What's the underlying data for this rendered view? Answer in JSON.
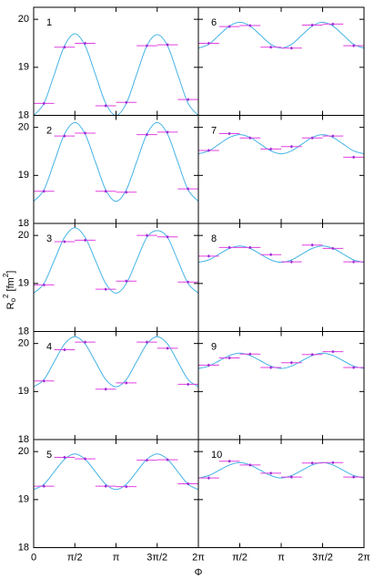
{
  "axes": {
    "ylabel_parts": [
      "R",
      "o",
      "2",
      " [fm",
      "2",
      "]"
    ],
    "xlabel": "Φ"
  },
  "chart_data": [
    {
      "type": "scatter",
      "title": "1",
      "color": "#9a2fd6",
      "errcolor": "#e040e0",
      "curve_color": "#45b3e6",
      "xlim": [
        0,
        6.283
      ],
      "ylim": [
        18,
        20.25
      ],
      "yticks": [
        18,
        19,
        20
      ],
      "xticks": [
        0,
        {
          "value": 1.571,
          "label": "π/2"
        },
        {
          "value": 3.142,
          "label": "π"
        },
        {
          "value": 4.712,
          "label": "3π/2"
        },
        {
          "value": 6.283,
          "label": "2π"
        }
      ],
      "x": [
        0.393,
        1.178,
        1.963,
        2.749,
        3.534,
        4.32,
        5.105,
        5.89
      ],
      "xerr": 0.393,
      "yerr": 0.03,
      "values": [
        18.25,
        19.42,
        19.5,
        18.2,
        18.27,
        19.45,
        19.47,
        18.33
      ],
      "curve": {
        "x": [
          0,
          0.393,
          0.785,
          1.178,
          1.571,
          1.963,
          2.356,
          2.749,
          3.142,
          3.534,
          3.927,
          4.32,
          4.712,
          5.105,
          5.498,
          5.89,
          6.283
        ],
        "values": [
          18.0,
          18.25,
          18.85,
          19.45,
          19.7,
          19.45,
          18.85,
          18.25,
          18.0,
          18.25,
          18.85,
          19.45,
          19.68,
          19.45,
          18.85,
          18.25,
          18.0
        ]
      }
    },
    {
      "type": "scatter",
      "title": "2",
      "color": "#9a2fd6",
      "errcolor": "#e040e0",
      "curve_color": "#45b3e6",
      "xlim": [
        0,
        6.283
      ],
      "ylim": [
        18,
        20.25
      ],
      "yticks": [
        18,
        19,
        20
      ],
      "xticks": [
        0,
        {
          "value": 1.571,
          "label": "π/2"
        },
        {
          "value": 3.142,
          "label": "π"
        },
        {
          "value": 4.712,
          "label": "3π/2"
        },
        {
          "value": 6.283,
          "label": "2π"
        }
      ],
      "x": [
        0.393,
        1.178,
        1.963,
        2.749,
        3.534,
        4.32,
        5.105,
        5.89
      ],
      "xerr": 0.393,
      "yerr": 0.03,
      "values": [
        18.67,
        19.82,
        19.88,
        18.67,
        18.65,
        19.85,
        19.9,
        18.72
      ],
      "curve": {
        "x": [
          0,
          0.393,
          0.785,
          1.178,
          1.571,
          1.963,
          2.356,
          2.749,
          3.142,
          3.534,
          3.927,
          4.32,
          4.712,
          5.105,
          5.498,
          5.89,
          6.283
        ],
        "values": [
          18.46,
          18.7,
          19.28,
          19.86,
          20.1,
          19.86,
          19.28,
          18.7,
          18.46,
          18.7,
          19.28,
          19.86,
          20.1,
          19.86,
          19.28,
          18.7,
          18.46
        ]
      }
    },
    {
      "type": "scatter",
      "title": "3",
      "color": "#9a2fd6",
      "errcolor": "#e040e0",
      "curve_color": "#45b3e6",
      "xlim": [
        0,
        6.283
      ],
      "ylim": [
        18,
        20.25
      ],
      "yticks": [
        18,
        19,
        20
      ],
      "xticks": [
        0,
        {
          "value": 1.571,
          "label": "π/2"
        },
        {
          "value": 3.142,
          "label": "π"
        },
        {
          "value": 4.712,
          "label": "3π/2"
        },
        {
          "value": 6.283,
          "label": "2π"
        }
      ],
      "x": [
        0.393,
        1.178,
        1.963,
        2.749,
        3.534,
        4.32,
        5.105,
        5.89
      ],
      "xerr": 0.393,
      "yerr": 0.03,
      "values": [
        18.97,
        19.87,
        19.9,
        18.88,
        19.05,
        20.0,
        19.97,
        19.03
      ],
      "curve": {
        "x": [
          0,
          0.393,
          0.785,
          1.178,
          1.571,
          1.963,
          2.356,
          2.749,
          3.142,
          3.534,
          3.927,
          4.32,
          4.712,
          5.105,
          5.498,
          5.89,
          6.283
        ],
        "values": [
          18.8,
          19.0,
          19.48,
          19.96,
          20.16,
          19.96,
          19.48,
          19.0,
          18.8,
          19.0,
          19.48,
          19.96,
          20.1,
          19.96,
          19.48,
          19.0,
          18.8
        ]
      }
    },
    {
      "type": "scatter",
      "title": "4",
      "color": "#9a2fd6",
      "errcolor": "#e040e0",
      "curve_color": "#45b3e6",
      "xlim": [
        0,
        6.283
      ],
      "ylim": [
        18,
        20.25
      ],
      "yticks": [
        18,
        19,
        20
      ],
      "xticks": [
        0,
        {
          "value": 1.571,
          "label": "π/2"
        },
        {
          "value": 3.142,
          "label": "π"
        },
        {
          "value": 4.712,
          "label": "3π/2"
        },
        {
          "value": 6.283,
          "label": "2π"
        }
      ],
      "x": [
        0.393,
        1.178,
        1.963,
        2.749,
        3.534,
        4.32,
        5.105,
        5.89
      ],
      "xerr": 0.393,
      "yerr": 0.03,
      "values": [
        19.22,
        19.87,
        20.03,
        19.05,
        19.18,
        20.03,
        19.9,
        19.15
      ],
      "curve": {
        "x": [
          0,
          0.393,
          0.785,
          1.178,
          1.571,
          1.963,
          2.356,
          2.749,
          3.142,
          3.534,
          3.927,
          4.32,
          4.712,
          5.105,
          5.498,
          5.89,
          6.283
        ],
        "values": [
          19.1,
          19.25,
          19.62,
          19.99,
          20.14,
          19.99,
          19.62,
          19.25,
          19.1,
          19.25,
          19.62,
          19.99,
          20.14,
          19.99,
          19.62,
          19.25,
          19.1
        ]
      }
    },
    {
      "type": "scatter",
      "title": "5",
      "color": "#9a2fd6",
      "errcolor": "#e040e0",
      "curve_color": "#45b3e6",
      "xlim": [
        0,
        6.283
      ],
      "ylim": [
        18,
        20.25
      ],
      "yticks": [
        18,
        19,
        20
      ],
      "xticks": [
        0,
        {
          "value": 1.571,
          "label": "π/2"
        },
        {
          "value": 3.142,
          "label": "π"
        },
        {
          "value": 4.712,
          "label": "3π/2"
        },
        {
          "value": 6.283,
          "label": "2π"
        }
      ],
      "x": [
        0.393,
        1.178,
        1.963,
        2.749,
        3.534,
        4.32,
        5.105,
        5.89
      ],
      "xerr": 0.393,
      "yerr": 0.03,
      "values": [
        19.28,
        19.88,
        19.85,
        19.28,
        19.27,
        19.82,
        19.83,
        19.33
      ],
      "curve": {
        "x": [
          0,
          0.393,
          0.785,
          1.178,
          1.571,
          1.963,
          2.356,
          2.749,
          3.142,
          3.534,
          3.927,
          4.32,
          4.712,
          5.105,
          5.498,
          5.89,
          6.283
        ],
        "values": [
          19.21,
          19.32,
          19.58,
          19.84,
          19.95,
          19.84,
          19.58,
          19.32,
          19.21,
          19.32,
          19.58,
          19.84,
          19.95,
          19.84,
          19.58,
          19.32,
          19.21
        ]
      }
    },
    {
      "type": "scatter",
      "title": "6",
      "color": "#9a2fd6",
      "errcolor": "#e040e0",
      "curve_color": "#45b3e6",
      "xlim": [
        0,
        6.283
      ],
      "ylim": [
        18,
        20.25
      ],
      "yticks": [
        18,
        19,
        20
      ],
      "xticks": [
        0,
        {
          "value": 1.571,
          "label": "π/2"
        },
        {
          "value": 3.142,
          "label": "π"
        },
        {
          "value": 4.712,
          "label": "3π/2"
        },
        {
          "value": 6.283,
          "label": "2π"
        }
      ],
      "x": [
        0.393,
        1.178,
        1.963,
        2.749,
        3.534,
        4.32,
        5.105,
        5.89
      ],
      "xerr": 0.393,
      "yerr": 0.03,
      "values": [
        19.5,
        19.85,
        19.87,
        19.42,
        19.4,
        19.88,
        19.9,
        19.45
      ],
      "curve": {
        "x": [
          0,
          0.393,
          0.785,
          1.178,
          1.571,
          1.963,
          2.356,
          2.749,
          3.142,
          3.534,
          3.927,
          4.32,
          4.712,
          5.105,
          5.498,
          5.89,
          6.283
        ],
        "values": [
          19.4,
          19.48,
          19.67,
          19.86,
          19.94,
          19.86,
          19.67,
          19.48,
          19.4,
          19.48,
          19.67,
          19.86,
          19.94,
          19.86,
          19.67,
          19.48,
          19.4
        ]
      }
    },
    {
      "type": "scatter",
      "title": "7",
      "color": "#9a2fd6",
      "errcolor": "#e040e0",
      "curve_color": "#45b3e6",
      "xlim": [
        0,
        6.283
      ],
      "ylim": [
        18,
        20.25
      ],
      "yticks": [
        18,
        19,
        20
      ],
      "xticks": [
        0,
        {
          "value": 1.571,
          "label": "π/2"
        },
        {
          "value": 3.142,
          "label": "π"
        },
        {
          "value": 4.712,
          "label": "3π/2"
        },
        {
          "value": 6.283,
          "label": "2π"
        }
      ],
      "x": [
        0.393,
        1.178,
        1.963,
        2.749,
        3.534,
        4.32,
        5.105,
        5.89
      ],
      "xerr": 0.393,
      "yerr": 0.03,
      "values": [
        19.52,
        19.87,
        19.78,
        19.55,
        19.6,
        19.78,
        19.82,
        19.38
      ],
      "curve": {
        "x": [
          0,
          0.393,
          0.785,
          1.178,
          1.571,
          1.963,
          2.356,
          2.749,
          3.142,
          3.534,
          3.927,
          4.32,
          4.712,
          5.105,
          5.498,
          5.89,
          6.283
        ],
        "values": [
          19.45,
          19.51,
          19.65,
          19.79,
          19.85,
          19.79,
          19.65,
          19.51,
          19.45,
          19.51,
          19.65,
          19.79,
          19.85,
          19.79,
          19.65,
          19.51,
          19.45
        ]
      }
    },
    {
      "type": "scatter",
      "title": "8",
      "color": "#9a2fd6",
      "errcolor": "#e040e0",
      "curve_color": "#45b3e6",
      "xlim": [
        0,
        6.283
      ],
      "ylim": [
        18,
        20.25
      ],
      "yticks": [
        18,
        19,
        20
      ],
      "xticks": [
        0,
        {
          "value": 1.571,
          "label": "π/2"
        },
        {
          "value": 3.142,
          "label": "π"
        },
        {
          "value": 4.712,
          "label": "3π/2"
        },
        {
          "value": 6.283,
          "label": "2π"
        }
      ],
      "x": [
        0.393,
        1.178,
        1.963,
        2.749,
        3.534,
        4.32,
        5.105,
        5.89
      ],
      "xerr": 0.393,
      "yerr": 0.03,
      "values": [
        19.57,
        19.75,
        19.75,
        19.6,
        19.45,
        19.8,
        19.73,
        19.45
      ],
      "curve": {
        "x": [
          0,
          0.393,
          0.785,
          1.178,
          1.571,
          1.963,
          2.356,
          2.749,
          3.142,
          3.534,
          3.927,
          4.32,
          4.712,
          5.105,
          5.498,
          5.89,
          6.283
        ],
        "values": [
          19.44,
          19.49,
          19.61,
          19.73,
          19.78,
          19.73,
          19.61,
          19.49,
          19.44,
          19.49,
          19.61,
          19.73,
          19.78,
          19.73,
          19.61,
          19.49,
          19.44
        ]
      }
    },
    {
      "type": "scatter",
      "title": "9",
      "color": "#9a2fd6",
      "errcolor": "#e040e0",
      "curve_color": "#45b3e6",
      "xlim": [
        0,
        6.283
      ],
      "ylim": [
        18,
        20.25
      ],
      "yticks": [
        18,
        19,
        20
      ],
      "xticks": [
        0,
        {
          "value": 1.571,
          "label": "π/2"
        },
        {
          "value": 3.142,
          "label": "π"
        },
        {
          "value": 4.712,
          "label": "3π/2"
        },
        {
          "value": 6.283,
          "label": "2π"
        }
      ],
      "x": [
        0.393,
        1.178,
        1.963,
        2.749,
        3.534,
        4.32,
        5.105,
        5.89
      ],
      "xerr": 0.393,
      "yerr": 0.03,
      "values": [
        19.55,
        19.7,
        19.78,
        19.5,
        19.6,
        19.77,
        19.83,
        19.5
      ],
      "curve": {
        "x": [
          0,
          0.393,
          0.785,
          1.178,
          1.571,
          1.963,
          2.356,
          2.749,
          3.142,
          3.534,
          3.927,
          4.32,
          4.712,
          5.105,
          5.498,
          5.89,
          6.283
        ],
        "values": [
          19.48,
          19.53,
          19.64,
          19.75,
          19.8,
          19.75,
          19.64,
          19.53,
          19.48,
          19.53,
          19.64,
          19.75,
          19.8,
          19.75,
          19.64,
          19.53,
          19.48
        ]
      }
    },
    {
      "type": "scatter",
      "title": "10",
      "color": "#9a2fd6",
      "errcolor": "#e040e0",
      "curve_color": "#45b3e6",
      "xlim": [
        0,
        6.283
      ],
      "ylim": [
        18,
        20.25
      ],
      "yticks": [
        18,
        19,
        20
      ],
      "xticks": [
        0,
        {
          "value": 1.571,
          "label": "π/2"
        },
        {
          "value": 3.142,
          "label": "π"
        },
        {
          "value": 4.712,
          "label": "3π/2"
        },
        {
          "value": 6.283,
          "label": "2π"
        }
      ],
      "x": [
        0.393,
        1.178,
        1.963,
        2.749,
        3.534,
        4.32,
        5.105,
        5.89
      ],
      "xerr": 0.393,
      "yerr": 0.03,
      "values": [
        19.45,
        19.8,
        19.72,
        19.55,
        19.47,
        19.76,
        19.77,
        19.47
      ],
      "curve": {
        "x": [
          0,
          0.393,
          0.785,
          1.178,
          1.571,
          1.963,
          2.356,
          2.749,
          3.142,
          3.534,
          3.927,
          4.32,
          4.712,
          5.105,
          5.498,
          5.89,
          6.283
        ],
        "values": [
          19.45,
          19.5,
          19.61,
          19.72,
          19.77,
          19.72,
          19.61,
          19.5,
          19.45,
          19.5,
          19.61,
          19.72,
          19.77,
          19.72,
          19.61,
          19.5,
          19.45
        ]
      }
    }
  ]
}
